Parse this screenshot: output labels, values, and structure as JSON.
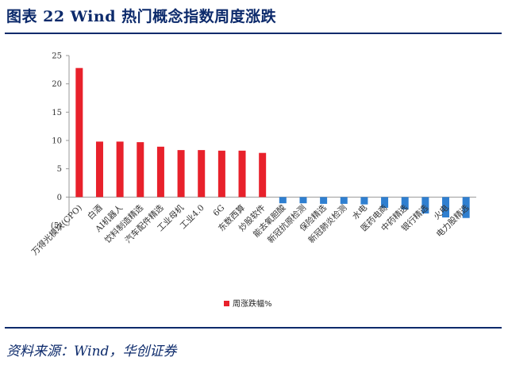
{
  "figure": {
    "title": "图表 22  Wind 热门概念指数周度涨跌",
    "source": "资料来源：Wind，华创证券"
  },
  "colors": {
    "positive": "#e8212b",
    "negative": "#2f7fd0",
    "rule": "#0c2a6b"
  },
  "chart_data": {
    "type": "bar",
    "title": "",
    "xlabel": "",
    "ylabel": "",
    "ylim": [
      -5,
      25
    ],
    "yticks": [
      25,
      20,
      15,
      10,
      5,
      0,
      -5
    ],
    "ytick_labels": [
      "25",
      "20",
      "15",
      "10",
      "5",
      "0",
      "(5)"
    ],
    "legend": {
      "label": "周涨跌幅%",
      "position": "bottom-center"
    },
    "categories": [
      "万得光模块(CPO)",
      "白酒",
      "AI机器人",
      "饮料制造精选",
      "汽车配件精选",
      "工业母机",
      "工业4.0",
      "6G",
      "东数西算",
      "炒股软件",
      "能去氧胆酸",
      "新冠抗原检测",
      "保险精选",
      "新冠肺炎检测",
      "水电",
      "医药电商",
      "中药精选",
      "银行精选",
      "火电",
      "电力股精选"
    ],
    "series": [
      {
        "name": "周涨跌幅%",
        "values": [
          22.8,
          9.8,
          9.8,
          9.7,
          8.9,
          8.3,
          8.3,
          8.2,
          8.2,
          7.8,
          -1.1,
          -1.1,
          -1.2,
          -1.2,
          -1.3,
          -1.9,
          -2.2,
          -2.9,
          -3.6,
          -3.7
        ]
      }
    ]
  }
}
